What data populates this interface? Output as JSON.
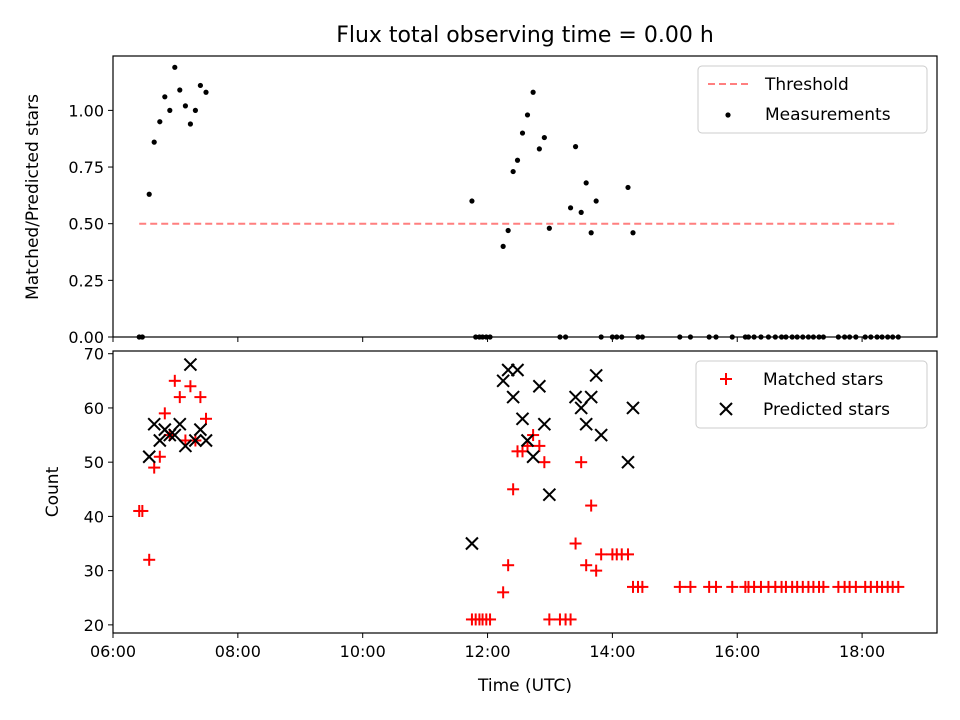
{
  "chart_data": [
    {
      "type": "scatter",
      "title": "Flux total observing time = 0.00 h",
      "xlabel": "",
      "ylabel": "Matched/Predicted stars",
      "xlim": [
        6.0,
        19.2
      ],
      "ylim": [
        0.0,
        1.24
      ],
      "yticks": [
        0.0,
        0.25,
        0.5,
        0.75,
        1.0
      ],
      "ytick_labels": [
        "0.00",
        "0.25",
        "0.50",
        "0.75",
        "1.00"
      ],
      "xticks": [
        6,
        8,
        10,
        12,
        14,
        16,
        18
      ],
      "legend_position": "top-right",
      "legend": [
        "Threshold",
        "Measurements"
      ],
      "threshold": {
        "name": "Threshold",
        "y": 0.5,
        "x": [
          6.42,
          18.58
        ],
        "color": "#ff7f7f",
        "style": "dashed"
      },
      "series": [
        {
          "name": "Measurements",
          "marker": "dot",
          "color": "#000000",
          "x": [
            6.42,
            6.47,
            6.58,
            6.66,
            6.75,
            6.83,
            6.91,
            6.99,
            7.07,
            7.16,
            7.24,
            7.32,
            7.4,
            7.49,
            11.75,
            11.81,
            11.87,
            11.92,
            11.98,
            12.04,
            12.25,
            12.33,
            12.41,
            12.48,
            12.56,
            12.64,
            12.73,
            12.83,
            12.91,
            12.99,
            13.16,
            13.25,
            13.33,
            13.41,
            13.5,
            13.58,
            13.66,
            13.74,
            13.82,
            14.0,
            14.07,
            14.15,
            14.25,
            14.33,
            14.41,
            14.48,
            15.08,
            15.25,
            15.55,
            15.66,
            15.92,
            16.13,
            16.18,
            16.27,
            16.38,
            16.5,
            16.61,
            16.71,
            16.78,
            16.88,
            16.96,
            17.05,
            17.14,
            17.22,
            17.31,
            17.38,
            17.62,
            17.72,
            17.8,
            17.9,
            18.05,
            18.14,
            18.24,
            18.32,
            18.41,
            18.49,
            18.58
          ],
          "y": [
            0,
            0,
            0.63,
            0.86,
            0.95,
            1.06,
            1.0,
            1.19,
            1.09,
            1.02,
            0.94,
            1.0,
            1.11,
            1.08,
            0.6,
            0,
            0,
            0,
            0,
            0,
            0.4,
            0.47,
            0.73,
            0.78,
            0.9,
            0.98,
            1.08,
            0.83,
            0.88,
            0.48,
            0,
            0,
            0.57,
            0.84,
            0.55,
            0.68,
            0.46,
            0.6,
            0,
            0,
            0,
            0,
            0.66,
            0.46,
            0,
            0,
            0,
            0,
            0,
            0,
            0,
            0,
            0,
            0,
            0,
            0,
            0,
            0,
            0,
            0,
            0,
            0,
            0,
            0,
            0,
            0,
            0,
            0,
            0,
            0,
            0,
            0,
            0,
            0,
            0,
            0,
            0
          ]
        }
      ]
    },
    {
      "type": "scatter",
      "title": "",
      "xlabel": "Time (UTC)",
      "ylabel": "Count",
      "xlim": [
        6.0,
        19.2
      ],
      "ylim": [
        18.5,
        70.5
      ],
      "yticks": [
        20,
        30,
        40,
        50,
        60,
        70
      ],
      "ytick_labels": [
        "20",
        "30",
        "40",
        "50",
        "60",
        "70"
      ],
      "xticks": [
        6,
        8,
        10,
        12,
        14,
        16,
        18
      ],
      "xtick_labels": [
        "06:00",
        "08:00",
        "10:00",
        "12:00",
        "14:00",
        "16:00",
        "18:00"
      ],
      "legend_position": "top-right",
      "legend": [
        "Matched stars",
        "Predicted stars"
      ],
      "series": [
        {
          "name": "Matched stars",
          "marker": "plus",
          "color": "#ff0000",
          "x": [
            6.42,
            6.47,
            6.58,
            6.66,
            6.75,
            6.83,
            6.91,
            6.99,
            7.07,
            7.16,
            7.24,
            7.32,
            7.4,
            7.49,
            11.75,
            11.81,
            11.87,
            11.92,
            11.98,
            12.04,
            12.25,
            12.33,
            12.41,
            12.48,
            12.56,
            12.64,
            12.73,
            12.83,
            12.91,
            12.99,
            13.16,
            13.25,
            13.33,
            13.41,
            13.5,
            13.58,
            13.66,
            13.74,
            13.82,
            14.0,
            14.07,
            14.15,
            14.25,
            14.33,
            14.41,
            14.48,
            15.08,
            15.25,
            15.55,
            15.66,
            15.92,
            16.13,
            16.18,
            16.27,
            16.38,
            16.5,
            16.61,
            16.71,
            16.78,
            16.88,
            16.96,
            17.05,
            17.14,
            17.22,
            17.31,
            17.38,
            17.62,
            17.72,
            17.8,
            17.9,
            18.05,
            18.14,
            18.24,
            18.32,
            18.41,
            18.49,
            18.58
          ],
          "y": [
            41,
            41,
            32,
            49,
            51,
            59,
            55,
            65,
            62,
            54,
            64,
            54,
            62,
            58,
            21,
            21,
            21,
            21,
            21,
            21,
            26,
            31,
            45,
            52,
            52,
            53,
            55,
            53,
            50,
            21,
            21,
            21,
            21,
            35,
            50,
            31,
            42,
            30,
            33,
            33,
            33,
            33,
            33,
            27,
            27,
            27,
            27,
            27,
            27,
            27,
            27,
            27,
            27,
            27,
            27,
            27,
            27,
            27,
            27,
            27,
            27,
            27,
            27,
            27,
            27,
            27,
            27,
            27,
            27,
            27,
            27,
            27,
            27,
            27,
            27,
            27,
            27
          ]
        },
        {
          "name": "Predicted stars",
          "marker": "x",
          "color": "#000000",
          "x": [
            6.58,
            6.66,
            6.75,
            6.83,
            6.91,
            6.99,
            7.07,
            7.16,
            7.24,
            7.32,
            7.4,
            7.49,
            11.75,
            12.25,
            12.33,
            12.41,
            12.48,
            12.56,
            12.64,
            12.73,
            12.83,
            12.91,
            12.99,
            13.41,
            13.5,
            13.58,
            13.66,
            13.74,
            13.82,
            14.25,
            14.33
          ],
          "y": [
            51,
            57,
            54,
            56,
            55,
            55,
            57,
            53,
            68,
            54,
            56,
            54,
            35,
            65,
            67,
            62,
            67,
            58,
            54,
            51,
            64,
            57,
            44,
            62,
            60,
            57,
            62,
            66,
            55,
            50,
            60
          ]
        }
      ]
    }
  ]
}
